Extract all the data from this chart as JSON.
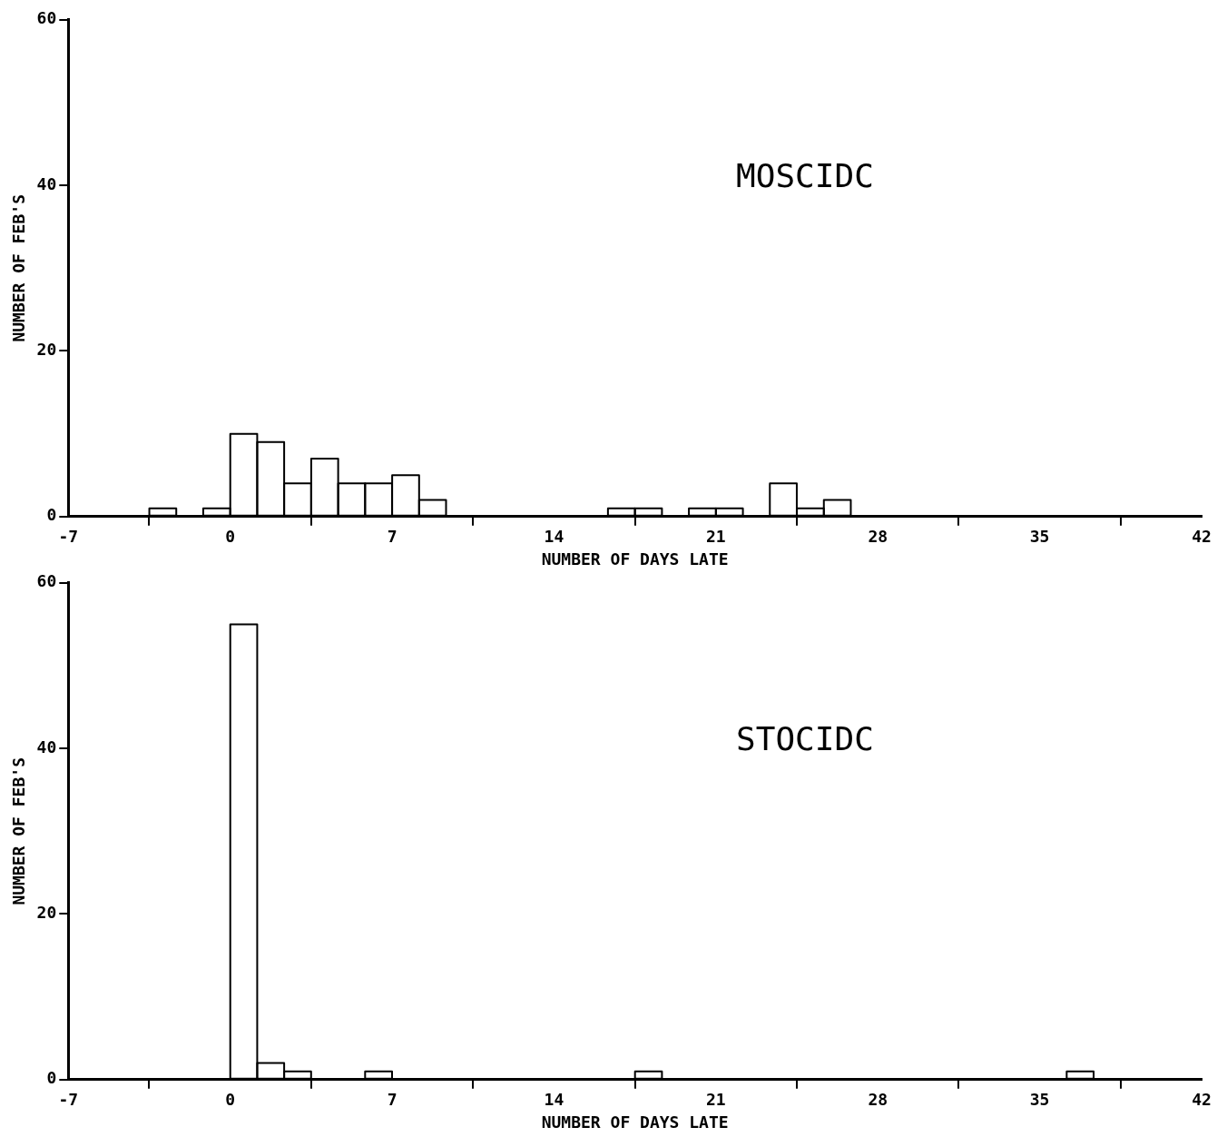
{
  "chart_data": [
    {
      "type": "histogram",
      "annotations": [
        "MOSCIDC"
      ],
      "xlabel": "NUMBER OF DAYS LATE",
      "ylabel": "NUMBER OF FEB'S",
      "bins": [
        -3.5,
        -2.33,
        -1.17,
        0,
        1.17,
        2.33,
        3.5,
        4.67,
        5.83,
        7,
        8.17,
        9.33,
        10.5,
        11.67,
        12.83,
        14,
        15.17,
        16.33,
        17.5,
        18.67,
        19.83,
        21,
        22.17,
        23.33,
        24.5,
        25.67,
        26.83
      ],
      "values": [
        1,
        0,
        1,
        10,
        9,
        4,
        7,
        4,
        4,
        5,
        2,
        0,
        0,
        0,
        0,
        0,
        0,
        1,
        1,
        0,
        1,
        1,
        0,
        4,
        1,
        2
      ],
      "color": "#000000",
      "xlim": [
        -7,
        42
      ],
      "xticks": [
        -7,
        0,
        7,
        14,
        21,
        28,
        35,
        42
      ],
      "ylim": [
        0,
        60
      ],
      "yticks": [
        0,
        20,
        40,
        60
      ],
      "grid": false
    },
    {
      "type": "histogram",
      "annotations": [
        "STOCIDC"
      ],
      "xlabel": "NUMBER OF DAYS LATE",
      "ylabel": "NUMBER OF FEB'S",
      "bins": [
        0,
        1.17,
        2.33,
        3.5,
        4.67,
        5.83,
        7,
        8.17,
        9.33,
        10.5,
        11.67,
        12.83,
        14,
        15.17,
        16.33,
        17.5,
        18.67,
        19.83,
        21,
        22.17,
        23.33,
        24.5,
        25.67,
        26.83,
        28,
        29.17,
        30.33,
        31.5,
        32.67,
        33.83,
        35,
        36.17,
        37.33
      ],
      "values": [
        55,
        2,
        1,
        0,
        0,
        1,
        0,
        0,
        0,
        0,
        0,
        0,
        0,
        0,
        0,
        1,
        0,
        0,
        0,
        0,
        0,
        0,
        0,
        0,
        0,
        0,
        0,
        0,
        0,
        0,
        0,
        1
      ],
      "color": "#000000",
      "xlim": [
        -7,
        42
      ],
      "xticks": [
        -7,
        0,
        7,
        14,
        21,
        28,
        35,
        42
      ],
      "ylim": [
        0,
        60
      ],
      "yticks": [
        0,
        20,
        40,
        60
      ],
      "grid": false
    }
  ]
}
